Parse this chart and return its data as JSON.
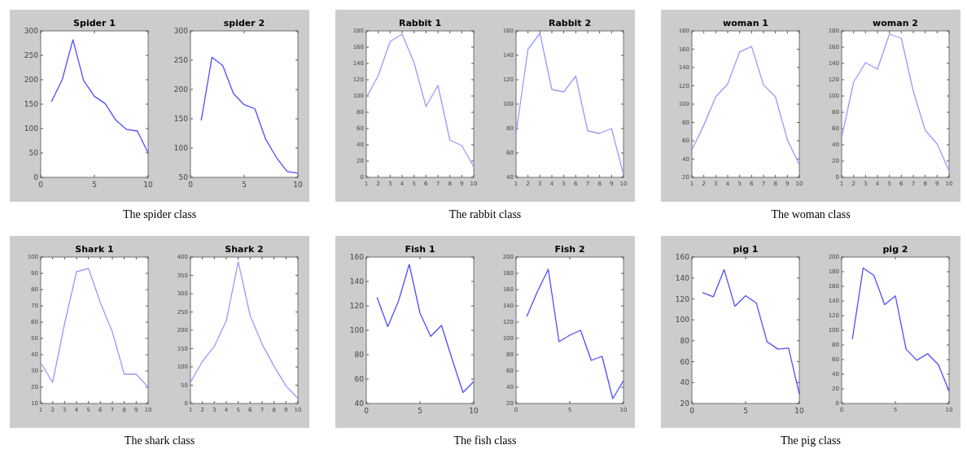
{
  "chart_data": [
    {
      "type": "line",
      "title": "Spider 1",
      "x": [
        1,
        2,
        3,
        4,
        5,
        6,
        7,
        8,
        9,
        10
      ],
      "values": [
        155,
        200,
        282,
        198,
        166,
        151,
        117,
        98,
        95,
        50
      ],
      "color": "#4d4dff",
      "xlim": [
        0,
        10
      ],
      "xticks": [
        0,
        5,
        10
      ],
      "ylim": [
        0,
        300
      ],
      "yticks": [
        0,
        50,
        100,
        150,
        200,
        250,
        300
      ],
      "annotations": [
        "The spider class"
      ]
    },
    {
      "type": "line",
      "title": "spider 2",
      "x": [
        1,
        2,
        3,
        4,
        5,
        6,
        7,
        8,
        9,
        10
      ],
      "values": [
        147,
        255,
        241,
        193,
        174,
        167,
        115,
        84,
        60,
        57
      ],
      "color": "#4d4dff",
      "xlim": [
        0,
        10
      ],
      "xticks": [
        0,
        5,
        10
      ],
      "ylim": [
        50,
        300
      ],
      "yticks": [
        50,
        100,
        150,
        200,
        250,
        300
      ]
    },
    {
      "type": "line",
      "title": "Rabbit 1",
      "x": [
        1,
        2,
        3,
        4,
        5,
        6,
        7,
        8,
        9,
        10
      ],
      "values": [
        98,
        125,
        167,
        176,
        141,
        87,
        113,
        46,
        39,
        13
      ],
      "color": "#9999ff",
      "xlim": [
        1,
        10
      ],
      "xticks": [
        1,
        2,
        3,
        4,
        5,
        6,
        7,
        8,
        9,
        10
      ],
      "ylim": [
        0,
        180
      ],
      "yticks": [
        0,
        20,
        40,
        60,
        80,
        100,
        120,
        140,
        160,
        180
      ],
      "annotations": [
        "The rabbit class"
      ]
    },
    {
      "type": "line",
      "title": "Rabbit 2",
      "x": [
        1,
        2,
        3,
        4,
        5,
        6,
        7,
        8,
        9,
        10
      ],
      "values": [
        76,
        145,
        158,
        112,
        110,
        123,
        78,
        76,
        80,
        42
      ],
      "color": "#9999ff",
      "xlim": [
        1,
        10
      ],
      "xticks": [
        1,
        2,
        3,
        4,
        5,
        6,
        7,
        8,
        9,
        10
      ],
      "ylim": [
        40,
        160
      ],
      "yticks": [
        40,
        60,
        80,
        100,
        120,
        140,
        160
      ]
    },
    {
      "type": "line",
      "title": "woman 1",
      "x": [
        1,
        2,
        3,
        4,
        5,
        6,
        7,
        8,
        9,
        10
      ],
      "values": [
        50,
        77,
        108,
        122,
        157,
        163,
        121,
        108,
        61,
        34
      ],
      "color": "#9999ff",
      "xlim": [
        1,
        10
      ],
      "xticks": [
        1,
        2,
        3,
        4,
        5,
        6,
        7,
        8,
        9,
        10
      ],
      "ylim": [
        20,
        180
      ],
      "yticks": [
        20,
        40,
        60,
        80,
        100,
        120,
        140,
        160,
        180
      ],
      "annotations": [
        "The woman class"
      ]
    },
    {
      "type": "line",
      "title": "woman 2",
      "x": [
        1,
        2,
        3,
        4,
        5,
        6,
        7,
        8,
        9,
        10
      ],
      "values": [
        49,
        117,
        141,
        133,
        176,
        171,
        106,
        58,
        41,
        8
      ],
      "color": "#9999ff",
      "xlim": [
        1,
        10
      ],
      "xticks": [
        1,
        2,
        3,
        4,
        5,
        6,
        7,
        8,
        9,
        10
      ],
      "ylim": [
        0,
        180
      ],
      "yticks": [
        0,
        20,
        40,
        60,
        80,
        100,
        120,
        140,
        160,
        180
      ]
    },
    {
      "type": "line",
      "title": "Shark 1",
      "x": [
        1,
        2,
        3,
        4,
        5,
        6,
        7,
        8,
        9,
        10
      ],
      "values": [
        35,
        23,
        59,
        91,
        93,
        72,
        54,
        28,
        28,
        20
      ],
      "color": "#9999ff",
      "xlim": [
        1,
        10
      ],
      "xticks": [
        1,
        2,
        3,
        4,
        5,
        6,
        7,
        8,
        9,
        10
      ],
      "ylim": [
        10,
        100
      ],
      "yticks": [
        10,
        20,
        30,
        40,
        50,
        60,
        70,
        80,
        90,
        100
      ],
      "annotations": [
        "The shark class"
      ]
    },
    {
      "type": "line",
      "title": "Shark 2",
      "x": [
        1,
        2,
        3,
        4,
        5,
        6,
        7,
        8,
        9,
        10
      ],
      "values": [
        58,
        115,
        156,
        226,
        387,
        240,
        162,
        102,
        48,
        14
      ],
      "color": "#9999ff",
      "xlim": [
        1,
        10
      ],
      "xticks": [
        1,
        2,
        3,
        4,
        5,
        6,
        7,
        8,
        9,
        10
      ],
      "ylim": [
        0,
        400
      ],
      "yticks": [
        0,
        50,
        100,
        150,
        200,
        250,
        300,
        350,
        400
      ]
    },
    {
      "type": "line",
      "title": "Fish 1",
      "x": [
        1,
        2,
        3,
        4,
        5,
        6,
        7,
        8,
        9,
        10
      ],
      "values": [
        127,
        103,
        124,
        154,
        114,
        95,
        104,
        76,
        49,
        58
      ],
      "color": "#4d4dff",
      "xlim": [
        0,
        10
      ],
      "xticks": [
        0,
        5,
        10
      ],
      "ylim": [
        40,
        160
      ],
      "yticks": [
        40,
        60,
        80,
        100,
        120,
        140,
        160
      ],
      "annotations": [
        "The fish class"
      ]
    },
    {
      "type": "line",
      "title": "Fish 2",
      "x": [
        1,
        2,
        3,
        4,
        5,
        6,
        7,
        8,
        9,
        10
      ],
      "values": [
        127,
        158,
        185,
        96,
        104,
        110,
        73,
        78,
        26,
        48
      ],
      "color": "#4d4dff",
      "xlim": [
        0,
        10
      ],
      "xticks": [
        0,
        5,
        10
      ],
      "ylim": [
        20,
        200
      ],
      "yticks": [
        20,
        40,
        60,
        80,
        100,
        120,
        140,
        160,
        180,
        200
      ]
    },
    {
      "type": "line",
      "title": "pig 1",
      "x": [
        1,
        2,
        3,
        4,
        5,
        6,
        7,
        8,
        9,
        10
      ],
      "values": [
        126,
        122,
        148,
        113,
        123,
        116,
        79,
        72,
        73,
        29
      ],
      "color": "#4d4dff",
      "xlim": [
        0,
        10
      ],
      "xticks": [
        0,
        5,
        10
      ],
      "ylim": [
        20,
        160
      ],
      "yticks": [
        20,
        40,
        60,
        80,
        100,
        120,
        140,
        160
      ],
      "annotations": [
        "The pig class"
      ]
    },
    {
      "type": "line",
      "title": "pig 2",
      "x": [
        1,
        2,
        3,
        4,
        5,
        6,
        7,
        8,
        9,
        10
      ],
      "values": [
        88,
        185,
        175,
        135,
        147,
        74,
        59,
        68,
        53,
        17
      ],
      "color": "#4d4dff",
      "xlim": [
        0,
        10
      ],
      "xticks": [
        0,
        5,
        10
      ],
      "ylim": [
        0,
        200
      ],
      "yticks": [
        0,
        20,
        40,
        60,
        80,
        100,
        120,
        140,
        160,
        180,
        200
      ]
    }
  ]
}
